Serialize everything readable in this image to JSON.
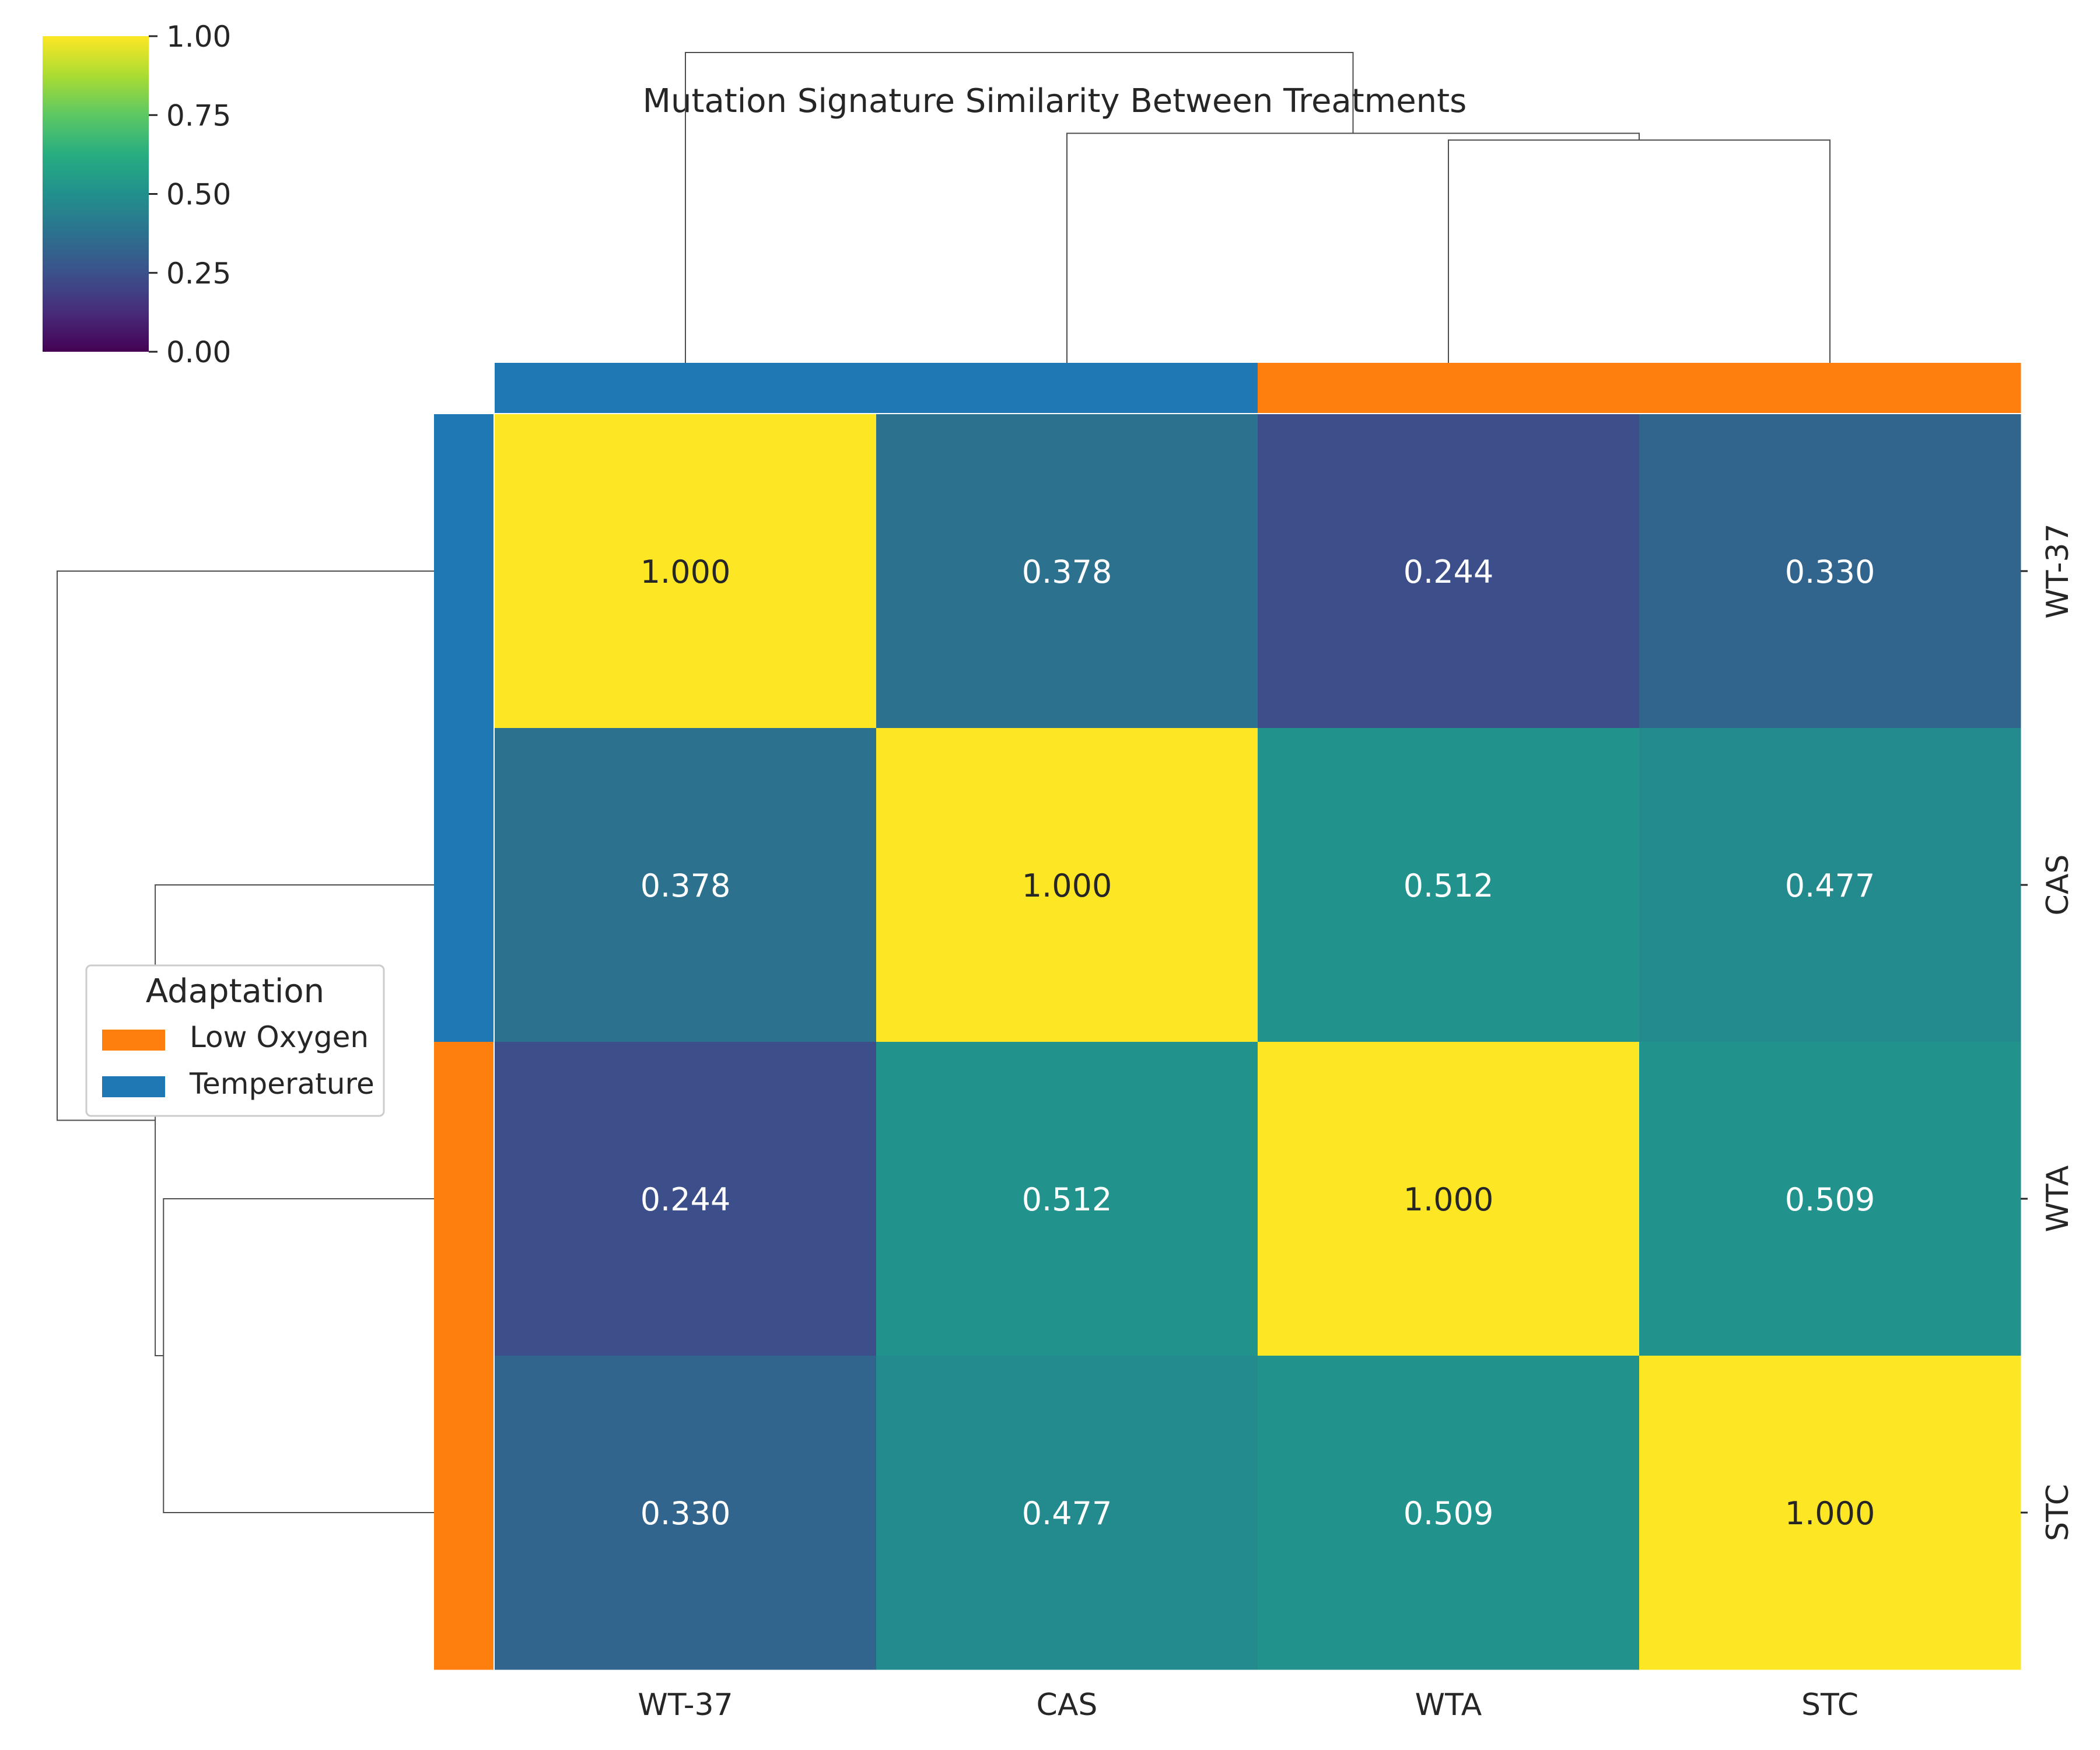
{
  "chart_data": {
    "type": "heatmap",
    "title": "Mutation Signature Similarity Between Treatments",
    "xlabel": "",
    "ylabel": "",
    "colormap": "viridis",
    "vmin": 0.0,
    "vmax": 1.0,
    "x_labels": [
      "WT-37",
      "CAS",
      "WTA",
      "STC"
    ],
    "y_labels": [
      "WT-37",
      "CAS",
      "WTA",
      "STC"
    ],
    "values": [
      [
        1.0,
        0.378,
        0.244,
        0.33
      ],
      [
        0.378,
        1.0,
        0.512,
        0.477
      ],
      [
        0.244,
        0.512,
        1.0,
        0.509
      ],
      [
        0.33,
        0.477,
        0.509,
        1.0
      ]
    ],
    "annotation_format": "3 decimals",
    "colorbar": {
      "ticks": [
        "0.00",
        "0.25",
        "0.50",
        "0.75",
        "1.00"
      ],
      "tick_values": [
        0.0,
        0.25,
        0.5,
        0.75,
        1.0
      ],
      "placement": "top-left"
    },
    "row_colors": [
      "Temperature",
      "Temperature",
      "Low Oxygen",
      "Low Oxygen"
    ],
    "col_colors": [
      "Temperature",
      "Temperature",
      "Low Oxygen",
      "Low Oxygen"
    ],
    "legend": {
      "title": "Adaptation",
      "placement": "left",
      "entries": [
        {
          "label": "Low Oxygen",
          "color": "#ff7f0e"
        },
        {
          "label": "Temperature",
          "color": "#1f77b4"
        }
      ]
    },
    "category_colors": {
      "Low Oxygen": "#ff7f0e",
      "Temperature": "#1f77b4"
    },
    "dendrogram": {
      "method": "hierarchical",
      "merges": [
        {
          "left": [
            2
          ],
          "right": [
            3
          ],
          "height": 0.491
        },
        {
          "left": [
            1
          ],
          "right": [
            2,
            3
          ],
          "height": 0.506
        },
        {
          "left": [
            0
          ],
          "right": [
            1,
            2,
            3
          ],
          "height": 0.684
        }
      ],
      "max_height": 0.684
    },
    "grid": false
  }
}
